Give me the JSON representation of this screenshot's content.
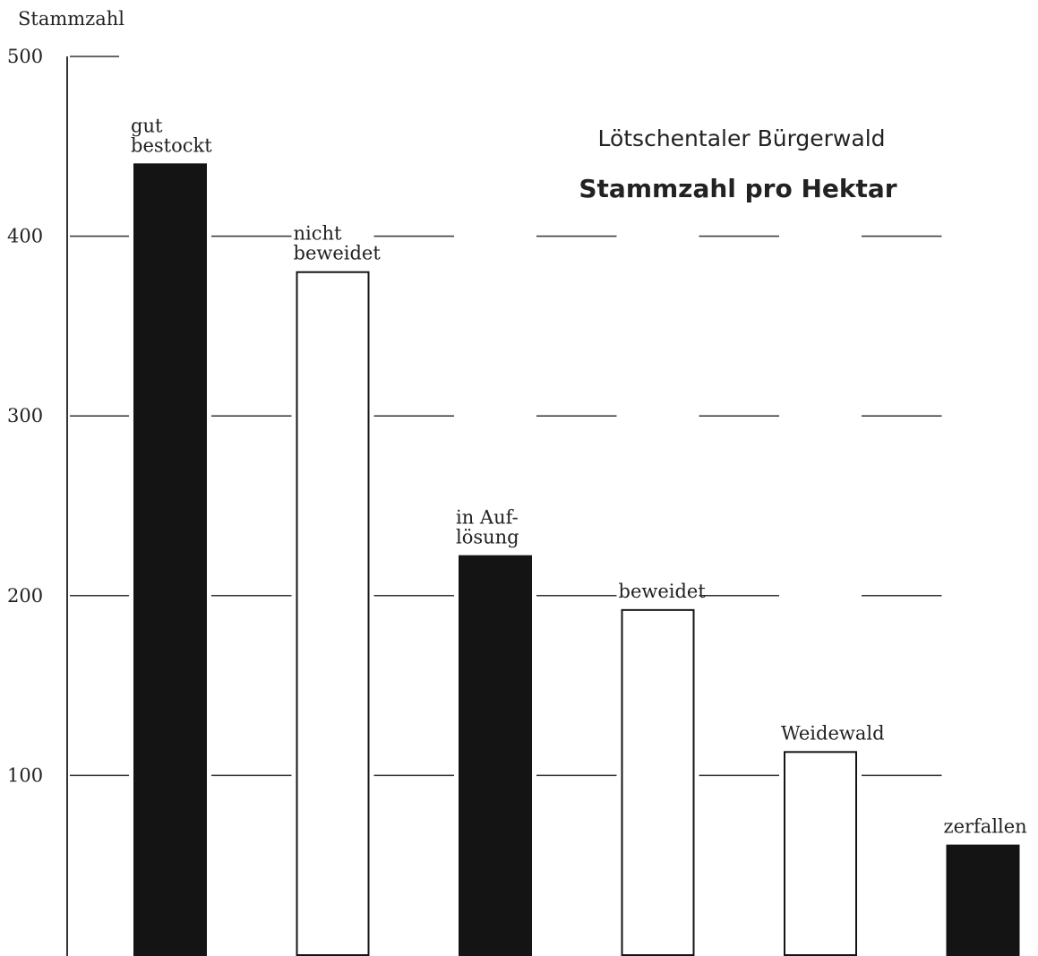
{
  "chart_data": {
    "type": "bar",
    "title": "Lötschentaler Bürgerwald",
    "subtitle": "Stammzahl pro Hektar",
    "y_label": "Stammzahl",
    "categories": [
      [
        "gut",
        "bestockt"
      ],
      [
        "nicht",
        "beweidet"
      ],
      [
        "in Auf-",
        "lösung"
      ],
      [
        "beweidet"
      ],
      [
        "Weidewald"
      ],
      [
        "zerfallen"
      ]
    ],
    "values": [
      440,
      380,
      222,
      192,
      113,
      61
    ],
    "colors": [
      "#141414",
      "#ffffff",
      "#141414",
      "#ffffff",
      "#ffffff",
      "#141414"
    ],
    "ylim": [
      0,
      500
    ],
    "yticks": [
      100,
      200,
      300,
      400,
      500
    ],
    "grid": true
  }
}
